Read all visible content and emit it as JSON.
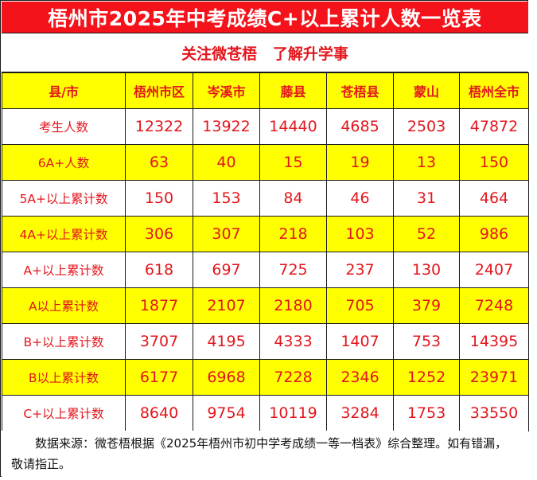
{
  "title": "梧州市2025年中考成绩C+以上累计人数一览表",
  "subtitle": "关注微苍梧   了解升学事",
  "table": {
    "headers": [
      "县/市",
      "梧州市区",
      "岑溪市",
      "藤县",
      "苍梧县",
      "蒙山",
      "梧州全市"
    ],
    "rows": [
      {
        "label": "考生人数",
        "values": [
          "12322",
          "13922",
          "14440",
          "4685",
          "2503",
          "47872"
        ],
        "highlight": false
      },
      {
        "label": "6A+人数",
        "values": [
          "63",
          "40",
          "15",
          "19",
          "13",
          "150"
        ],
        "highlight": true
      },
      {
        "label": "5A+以上累计数",
        "values": [
          "150",
          "153",
          "84",
          "46",
          "31",
          "464"
        ],
        "highlight": false
      },
      {
        "label": "4A+以上累计数",
        "values": [
          "306",
          "307",
          "218",
          "103",
          "52",
          "986"
        ],
        "highlight": true
      },
      {
        "label": "A+以上累计数",
        "values": [
          "618",
          "697",
          "725",
          "237",
          "130",
          "2407"
        ],
        "highlight": false
      },
      {
        "label": "A以上累计数",
        "values": [
          "1877",
          "2107",
          "2180",
          "705",
          "379",
          "7248"
        ],
        "highlight": true
      },
      {
        "label": "B+以上累计数",
        "values": [
          "3707",
          "4195",
          "4333",
          "1407",
          "753",
          "14395"
        ],
        "highlight": false
      },
      {
        "label": "B以上累计数",
        "values": [
          "6177",
          "6968",
          "7228",
          "2346",
          "1252",
          "23971"
        ],
        "highlight": true
      },
      {
        "label": "C+以上累计数",
        "values": [
          "8640",
          "9754",
          "10119",
          "3284",
          "1753",
          "33550"
        ],
        "highlight": false
      }
    ]
  },
  "footer": "数据来源：微苍梧根据《2025年梧州市初中学考成绩一等一档表》综合整理。如有错漏，敬请指正。",
  "colors": {
    "title_bg": "#f4131a",
    "title_text": "#ffffff",
    "cell_text": "#e3161d",
    "highlight_bg": "#ffff00",
    "plain_bg": "#ffffff",
    "footer_text": "#111111"
  }
}
